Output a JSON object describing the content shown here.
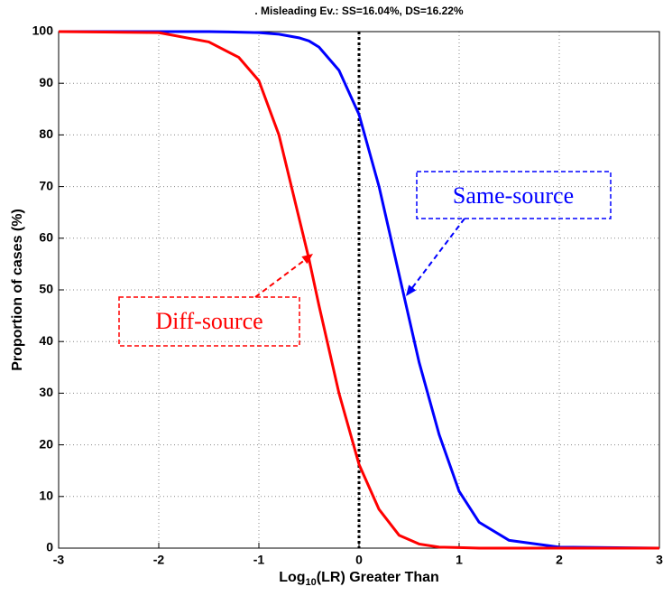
{
  "chart_data": {
    "type": "line",
    "title": ". Misleading Ev.: SS=16.04%, DS=16.22%",
    "xlabel": [
      "Log",
      "10",
      "(LR) Greater Than"
    ],
    "ylabel": "Proportion of cases (%)",
    "x": [
      -3,
      -2,
      -1.5,
      -1.2,
      -1,
      -0.8,
      -0.6,
      -0.5,
      -0.4,
      -0.2,
      0,
      0.2,
      0.4,
      0.6,
      0.8,
      1,
      1.2,
      1.5,
      2,
      3
    ],
    "series": [
      {
        "name": "Same-source",
        "color": "#0000ff",
        "values": [
          100,
          100,
          100,
          99.9,
          99.8,
          99.5,
          98.8,
          98.2,
          97,
          92.5,
          83.96,
          70,
          53,
          36,
          22,
          11,
          5,
          1.5,
          0.2,
          0
        ]
      },
      {
        "name": "Diff-source",
        "color": "#ff0000",
        "values": [
          100,
          99.8,
          98,
          95,
          90.5,
          80,
          64,
          56,
          47,
          30,
          16.22,
          7.5,
          2.5,
          0.8,
          0.2,
          0.1,
          0,
          0,
          0,
          0
        ]
      }
    ],
    "reference_x": 0,
    "xlim": [
      -3,
      3
    ],
    "xticks": [
      -3,
      -2,
      -1,
      0,
      1,
      2,
      3
    ],
    "ylim": [
      0,
      100
    ],
    "yticks": [
      0,
      10,
      20,
      30,
      40,
      50,
      60,
      70,
      80,
      90,
      100
    ],
    "grid": true
  }
}
